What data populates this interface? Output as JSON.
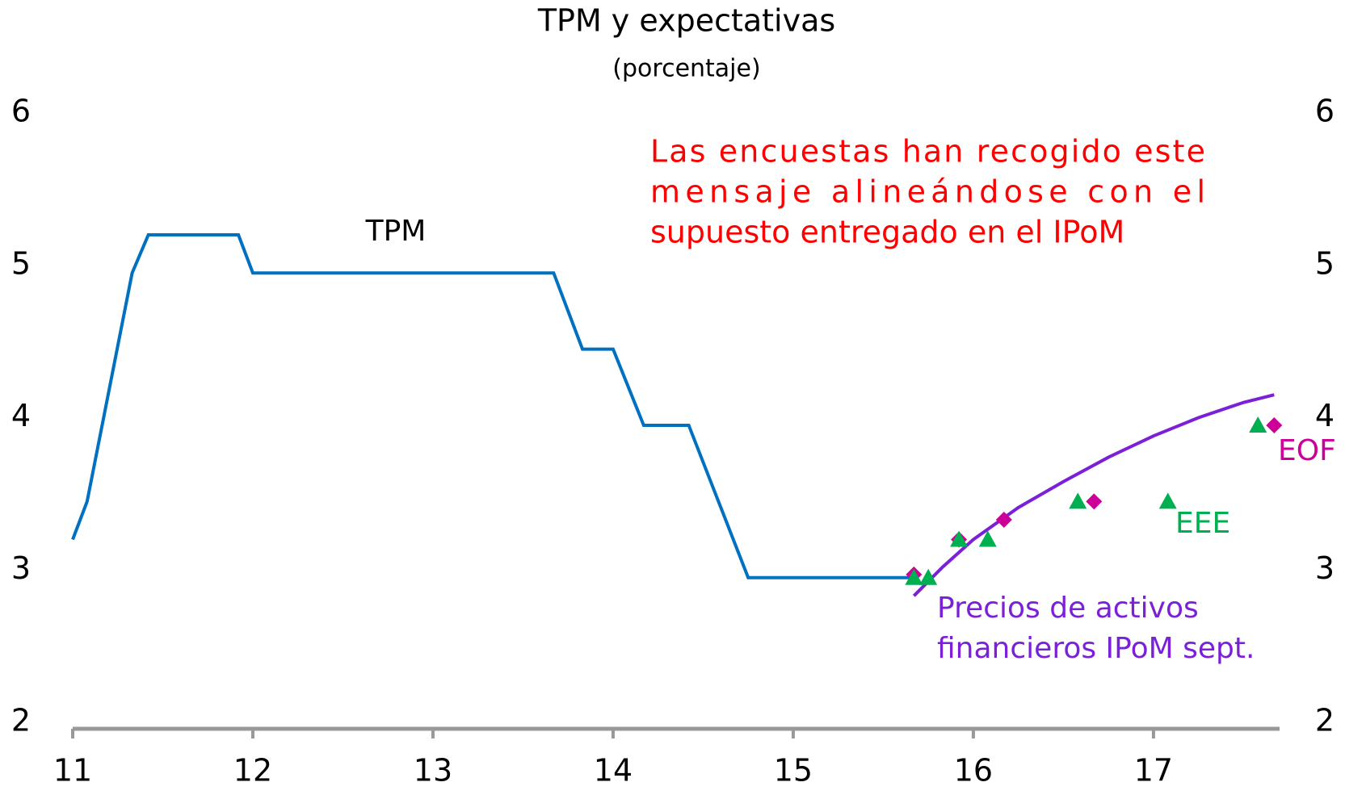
{
  "chart_data": {
    "type": "line",
    "title": "TPM y expectativas",
    "subtitle": "(porcentaje)",
    "xlim": [
      11,
      17.7
    ],
    "xticks": [
      11,
      12,
      13,
      14,
      15,
      16,
      17
    ],
    "ylim": [
      2,
      6
    ],
    "yticks": [
      2,
      3,
      4,
      5,
      6
    ],
    "y2lim": [
      2,
      6
    ],
    "y2ticks": [
      2,
      3,
      4,
      5,
      6
    ],
    "grid": false,
    "series": [
      {
        "name": "TPM",
        "color": "#0070c0",
        "mode": "line",
        "x": [
          11,
          11.08,
          11.33,
          11.42,
          11.92,
          12.0,
          13.67,
          13.83,
          14.0,
          14.17,
          14.42,
          14.75,
          15.67
        ],
        "values": [
          3.2,
          3.45,
          4.95,
          5.2,
          5.2,
          4.95,
          4.95,
          4.45,
          4.45,
          3.95,
          3.95,
          2.95,
          2.95
        ]
      },
      {
        "name": "Precios de activos financieros IPoM sept.",
        "color": "#7b1fd8",
        "mode": "line",
        "x": [
          15.67,
          15.83,
          16.0,
          16.25,
          16.5,
          16.75,
          17.0,
          17.25,
          17.5,
          17.67
        ],
        "values": [
          2.83,
          3.02,
          3.2,
          3.41,
          3.58,
          3.74,
          3.88,
          4.0,
          4.1,
          4.15
        ]
      },
      {
        "name": "EEE",
        "color": "#00b050",
        "mode": "triangle",
        "x": [
          15.67,
          15.75,
          15.92,
          16.08,
          16.58,
          17.08,
          17.58
        ],
        "values": [
          2.95,
          2.95,
          3.2,
          3.2,
          3.45,
          3.45,
          3.95
        ]
      },
      {
        "name": "EOF",
        "color": "#cc0099",
        "mode": "diamond",
        "x": [
          15.67,
          15.92,
          16.17,
          16.67,
          17.67
        ],
        "values": [
          2.97,
          3.2,
          3.33,
          3.45,
          3.95
        ]
      }
    ],
    "annotations": {
      "tpm": "TPM",
      "precios": [
        "Precios de activos",
        "financieros IPoM sept."
      ],
      "message": [
        "Las encuestas han recogido este",
        "mensaje alineándose con el",
        "supuesto entregado en el IPoM"
      ]
    }
  }
}
